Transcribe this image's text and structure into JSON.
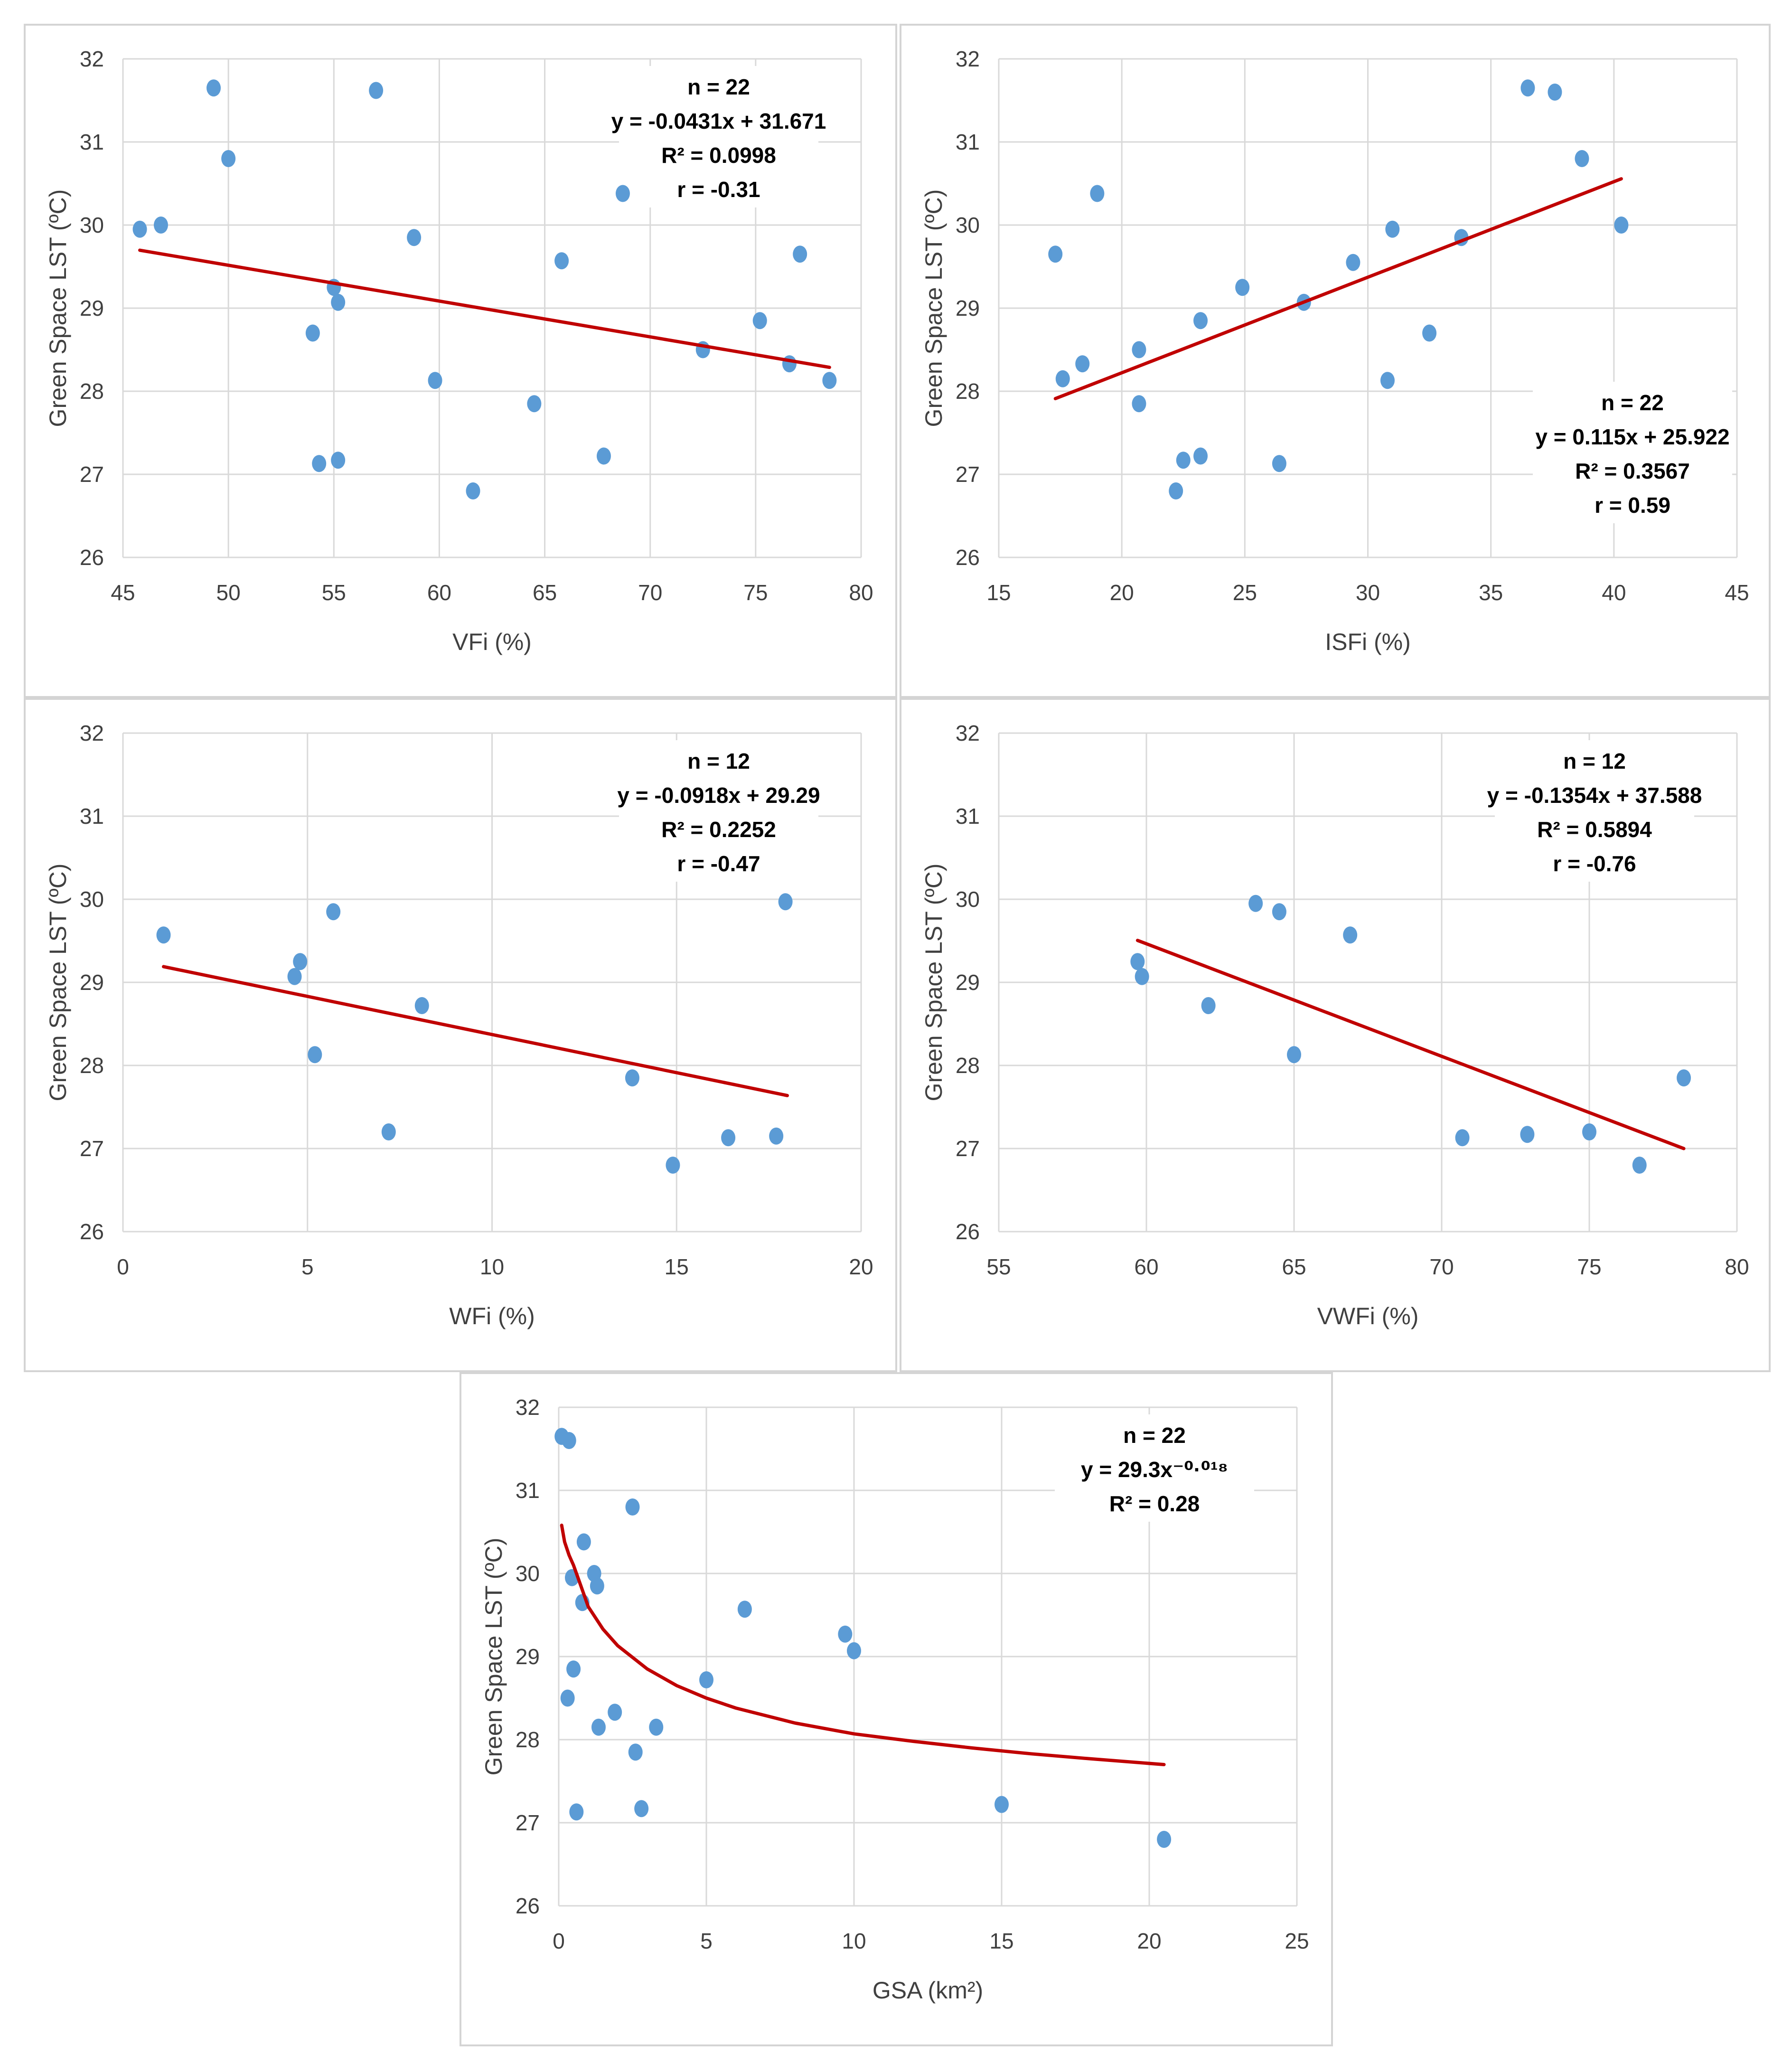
{
  "chart_data": [
    {
      "type": "scatter",
      "title": "",
      "xlabel": "VFi (%)",
      "ylabel": "Green Space  LST (ºC)",
      "xlim": [
        45,
        80
      ],
      "xticks": [
        45,
        50,
        55,
        60,
        65,
        70,
        75,
        80
      ],
      "ylim": [
        26,
        32
      ],
      "yticks": [
        26,
        27,
        28,
        29,
        30,
        31,
        32
      ],
      "annotation": [
        "n = 22",
        "y = -0.0431x + 31.671",
        "R² = 0.0998",
        "r = -0.31"
      ],
      "annotation_pos": "top-right",
      "fit": {
        "kind": "linear",
        "slope": -0.0431,
        "intercept": 31.671,
        "x_range": [
          45.8,
          78.5
        ]
      },
      "points": [
        {
          "x": 45.8,
          "y": 29.95
        },
        {
          "x": 46.8,
          "y": 30.0
        },
        {
          "x": 49.3,
          "y": 31.65
        },
        {
          "x": 50.0,
          "y": 30.8
        },
        {
          "x": 54.0,
          "y": 28.7
        },
        {
          "x": 54.3,
          "y": 27.13
        },
        {
          "x": 55.0,
          "y": 29.25
        },
        {
          "x": 55.2,
          "y": 27.17
        },
        {
          "x": 55.2,
          "y": 29.07
        },
        {
          "x": 57.0,
          "y": 31.62
        },
        {
          "x": 58.8,
          "y": 29.85
        },
        {
          "x": 59.8,
          "y": 28.13
        },
        {
          "x": 61.6,
          "y": 26.8
        },
        {
          "x": 64.5,
          "y": 27.85
        },
        {
          "x": 65.8,
          "y": 29.57
        },
        {
          "x": 67.8,
          "y": 27.22
        },
        {
          "x": 68.7,
          "y": 30.38
        },
        {
          "x": 72.5,
          "y": 28.5
        },
        {
          "x": 75.2,
          "y": 28.85
        },
        {
          "x": 76.6,
          "y": 28.33
        },
        {
          "x": 77.1,
          "y": 29.65
        },
        {
          "x": 78.5,
          "y": 28.13
        }
      ]
    },
    {
      "type": "scatter",
      "title": "",
      "xlabel": "ISFi (%)",
      "ylabel": "Green Space  LST (ºC)",
      "xlim": [
        15,
        45
      ],
      "xticks": [
        15,
        20,
        25,
        30,
        35,
        40,
        45
      ],
      "ylim": [
        26,
        32
      ],
      "yticks": [
        26,
        27,
        28,
        29,
        30,
        31,
        32
      ],
      "annotation": [
        "n = 22",
        "y = 0.115x + 25.922",
        "R² = 0.3567",
        "r = 0.59"
      ],
      "annotation_pos": "bottom-right",
      "fit": {
        "kind": "linear",
        "slope": 0.115,
        "intercept": 25.922,
        "x_range": [
          17.3,
          40.3
        ]
      },
      "points": [
        {
          "x": 17.3,
          "y": 29.65
        },
        {
          "x": 17.6,
          "y": 28.15
        },
        {
          "x": 18.4,
          "y": 28.33
        },
        {
          "x": 19.0,
          "y": 30.38
        },
        {
          "x": 20.7,
          "y": 28.5
        },
        {
          "x": 20.7,
          "y": 27.85
        },
        {
          "x": 22.2,
          "y": 26.8
        },
        {
          "x": 22.5,
          "y": 27.17
        },
        {
          "x": 23.2,
          "y": 27.22
        },
        {
          "x": 23.2,
          "y": 28.85
        },
        {
          "x": 24.9,
          "y": 29.25
        },
        {
          "x": 26.4,
          "y": 27.13
        },
        {
          "x": 27.4,
          "y": 29.07
        },
        {
          "x": 29.4,
          "y": 29.55
        },
        {
          "x": 30.8,
          "y": 28.13
        },
        {
          "x": 31.0,
          "y": 29.95
        },
        {
          "x": 32.5,
          "y": 28.7
        },
        {
          "x": 33.8,
          "y": 29.85
        },
        {
          "x": 36.5,
          "y": 31.65
        },
        {
          "x": 37.6,
          "y": 31.6
        },
        {
          "x": 38.7,
          "y": 30.8
        },
        {
          "x": 40.3,
          "y": 30.0
        }
      ]
    },
    {
      "type": "scatter",
      "title": "",
      "xlabel": "WFi (%)",
      "ylabel": "Green Space  LST (ºC)",
      "xlim": [
        0,
        20
      ],
      "xticks": [
        0,
        5,
        10,
        15,
        20
      ],
      "ylim": [
        26,
        32
      ],
      "yticks": [
        26,
        27,
        28,
        29,
        30,
        31,
        32
      ],
      "annotation": [
        "n = 12",
        "y = -0.0918x + 29.29",
        "R² = 0.2252",
        "r = -0.47"
      ],
      "annotation_pos": "top-right",
      "fit": {
        "kind": "linear",
        "slope": -0.0918,
        "intercept": 29.29,
        "x_range": [
          1.1,
          18.0
        ]
      },
      "points": [
        {
          "x": 1.1,
          "y": 29.57
        },
        {
          "x": 4.65,
          "y": 29.07
        },
        {
          "x": 4.8,
          "y": 29.25
        },
        {
          "x": 5.2,
          "y": 28.13
        },
        {
          "x": 5.7,
          "y": 29.85
        },
        {
          "x": 7.2,
          "y": 27.2
        },
        {
          "x": 8.1,
          "y": 28.72
        },
        {
          "x": 13.8,
          "y": 27.85
        },
        {
          "x": 14.9,
          "y": 26.8
        },
        {
          "x": 16.4,
          "y": 27.13
        },
        {
          "x": 17.7,
          "y": 27.15
        },
        {
          "x": 17.95,
          "y": 29.97
        }
      ]
    },
    {
      "type": "scatter",
      "title": "",
      "xlabel": "VWFi (%)",
      "ylabel": "Green Space  LST (ºC)",
      "xlim": [
        55,
        80
      ],
      "xticks": [
        55,
        60,
        65,
        70,
        75,
        80
      ],
      "ylim": [
        26,
        32
      ],
      "yticks": [
        26,
        27,
        28,
        29,
        30,
        31,
        32
      ],
      "annotation": [
        "n = 12",
        "y = -0.1354x + 37.588",
        "R² = 0.5894",
        "r = -0.76"
      ],
      "annotation_pos": "top-right",
      "fit": {
        "kind": "linear",
        "slope": -0.1354,
        "intercept": 37.588,
        "x_range": [
          59.7,
          78.2
        ]
      },
      "points": [
        {
          "x": 59.7,
          "y": 29.25
        },
        {
          "x": 59.85,
          "y": 29.07
        },
        {
          "x": 62.1,
          "y": 28.72
        },
        {
          "x": 63.7,
          "y": 29.95
        },
        {
          "x": 64.5,
          "y": 29.85
        },
        {
          "x": 65.0,
          "y": 28.13
        },
        {
          "x": 66.9,
          "y": 29.57
        },
        {
          "x": 70.7,
          "y": 27.13
        },
        {
          "x": 72.9,
          "y": 27.17
        },
        {
          "x": 75.0,
          "y": 27.2
        },
        {
          "x": 76.7,
          "y": 26.8
        },
        {
          "x": 78.2,
          "y": 27.85
        }
      ]
    },
    {
      "type": "scatter",
      "title": "",
      "xlabel": "GSA (km²)",
      "ylabel": "Green Space  LST (ºC)",
      "xlim": [
        0,
        25
      ],
      "xticks": [
        0,
        5,
        10,
        15,
        20,
        25
      ],
      "ylim": [
        26,
        32
      ],
      "yticks": [
        26,
        27,
        28,
        29,
        30,
        31,
        32
      ],
      "annotation": [
        "n = 22",
        "y = 29.3x⁻⁰·⁰¹⁸",
        "R² = 0.28"
      ],
      "annotation_pos": "top-right",
      "fit": {
        "kind": "power",
        "a": 29.3,
        "b": -0.018,
        "x_range": [
          0.1,
          20.5
        ],
        "samples": [
          [
            0.1,
            30.58
          ],
          [
            0.2,
            30.38
          ],
          [
            0.35,
            30.22
          ],
          [
            0.5,
            30.1
          ],
          [
            0.75,
            29.85
          ],
          [
            1.0,
            29.6
          ],
          [
            1.5,
            29.33
          ],
          [
            2.0,
            29.13
          ],
          [
            3.0,
            28.85
          ],
          [
            4.0,
            28.65
          ],
          [
            5.0,
            28.5
          ],
          [
            6.0,
            28.38
          ],
          [
            8.0,
            28.2
          ],
          [
            10.0,
            28.07
          ],
          [
            12.0,
            27.98
          ],
          [
            14.0,
            27.9
          ],
          [
            16.0,
            27.83
          ],
          [
            18.0,
            27.77
          ],
          [
            20.5,
            27.7
          ]
        ]
      },
      "points": [
        {
          "x": 0.1,
          "y": 31.65
        },
        {
          "x": 0.35,
          "y": 31.6
        },
        {
          "x": 0.3,
          "y": 28.5
        },
        {
          "x": 0.45,
          "y": 29.95
        },
        {
          "x": 0.5,
          "y": 28.85
        },
        {
          "x": 0.6,
          "y": 27.13
        },
        {
          "x": 0.8,
          "y": 29.65
        },
        {
          "x": 0.85,
          "y": 30.38
        },
        {
          "x": 1.2,
          "y": 30.0
        },
        {
          "x": 1.3,
          "y": 29.85
        },
        {
          "x": 1.35,
          "y": 28.15
        },
        {
          "x": 1.9,
          "y": 28.33
        },
        {
          "x": 2.5,
          "y": 30.8
        },
        {
          "x": 2.6,
          "y": 27.85
        },
        {
          "x": 2.8,
          "y": 27.17
        },
        {
          "x": 3.3,
          "y": 28.15
        },
        {
          "x": 5.0,
          "y": 28.72
        },
        {
          "x": 6.3,
          "y": 29.57
        },
        {
          "x": 9.7,
          "y": 29.27
        },
        {
          "x": 10.0,
          "y": 29.07
        },
        {
          "x": 15.0,
          "y": 27.22
        },
        {
          "x": 20.5,
          "y": 26.8
        }
      ]
    }
  ],
  "colors": {
    "point": "#5b9bd5",
    "fit_line": "#c00000",
    "grid": "#d9d9d9",
    "axis_text": "#404040",
    "annotation_text": "#000000"
  }
}
